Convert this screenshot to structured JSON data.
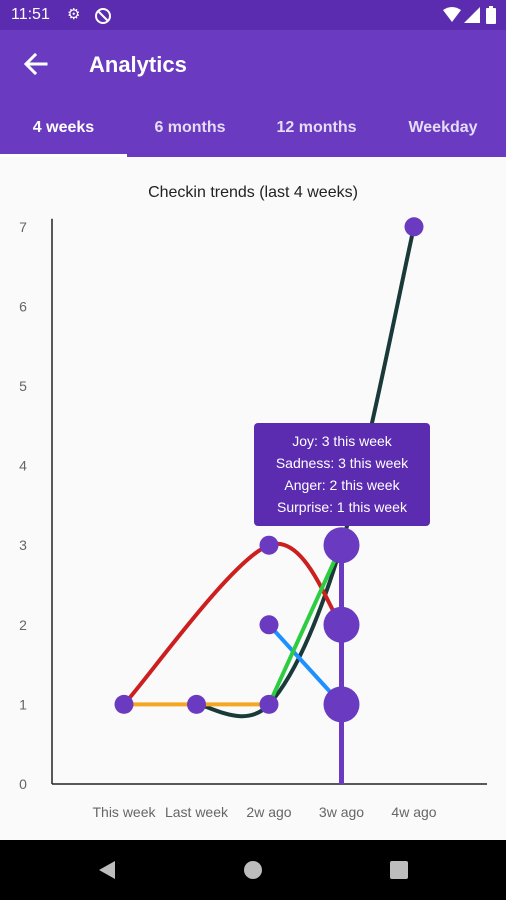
{
  "status_bar": {
    "time": "11:51",
    "icons": [
      "gear-icon",
      "sync-off-icon",
      "wifi-icon",
      "signal-icon",
      "battery-icon"
    ]
  },
  "app_bar": {
    "title": "Analytics",
    "back_icon": "arrow-back-icon"
  },
  "tabs": [
    {
      "label": "4 weeks",
      "active": true
    },
    {
      "label": "6 months",
      "active": false
    },
    {
      "label": "12 months",
      "active": false
    },
    {
      "label": "Weekday",
      "active": false
    }
  ],
  "tooltip": {
    "lines": [
      "Joy: 3 this week",
      "Sadness: 3 this week",
      "Anger: 2 this week",
      "Surprise: 1 this week"
    ]
  },
  "chart_data": {
    "type": "line",
    "title": "Checkin trends (last 4 weeks)",
    "categories": [
      "This week",
      "Last week",
      "2w ago",
      "3w ago",
      "4w ago"
    ],
    "y_ticks": [
      0,
      1,
      2,
      3,
      4,
      5,
      6,
      7
    ],
    "ylim": [
      0,
      7
    ],
    "series": [
      {
        "color": "#1a3a3a",
        "values": [
          null,
          1,
          1,
          3,
          7
        ]
      },
      {
        "color": "#cc1f1f",
        "values": [
          1,
          null,
          3,
          2,
          null
        ]
      },
      {
        "color": "#f5a623",
        "values": [
          1,
          1,
          1,
          null,
          null
        ]
      },
      {
        "color": "#1e90ff",
        "values": [
          null,
          null,
          2,
          1,
          null
        ]
      },
      {
        "color": "#2ecc40",
        "values": [
          null,
          null,
          1,
          3,
          null
        ]
      }
    ],
    "highlight_category_index": 3,
    "accent_color": "#6a3bc1"
  },
  "nav_bar": {
    "icons": [
      "back-triangle-icon",
      "home-circle-icon",
      "recents-square-icon"
    ]
  }
}
